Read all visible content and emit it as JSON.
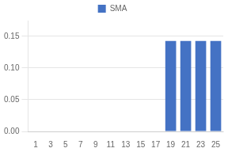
{
  "chart_data": {
    "type": "bar",
    "categories": [
      "1",
      "3",
      "5",
      "7",
      "9",
      "11",
      "13",
      "15",
      "17",
      "19",
      "21",
      "23",
      "25"
    ],
    "series": [
      {
        "name": "SMA",
        "color": "#4472C4",
        "values": [
          0,
          0,
          0,
          0,
          0,
          0,
          0,
          0,
          0,
          0.142857,
          0.142857,
          0.142857,
          0.142857
        ]
      }
    ],
    "ylim": [
      0,
      0.175
    ],
    "yticks": [
      {
        "value": 0,
        "label": "0.00"
      },
      0.05,
      {
        "value": 0.1,
        "label": "0.10"
      },
      0.15
    ],
    "grid": true,
    "legend": "top"
  }
}
